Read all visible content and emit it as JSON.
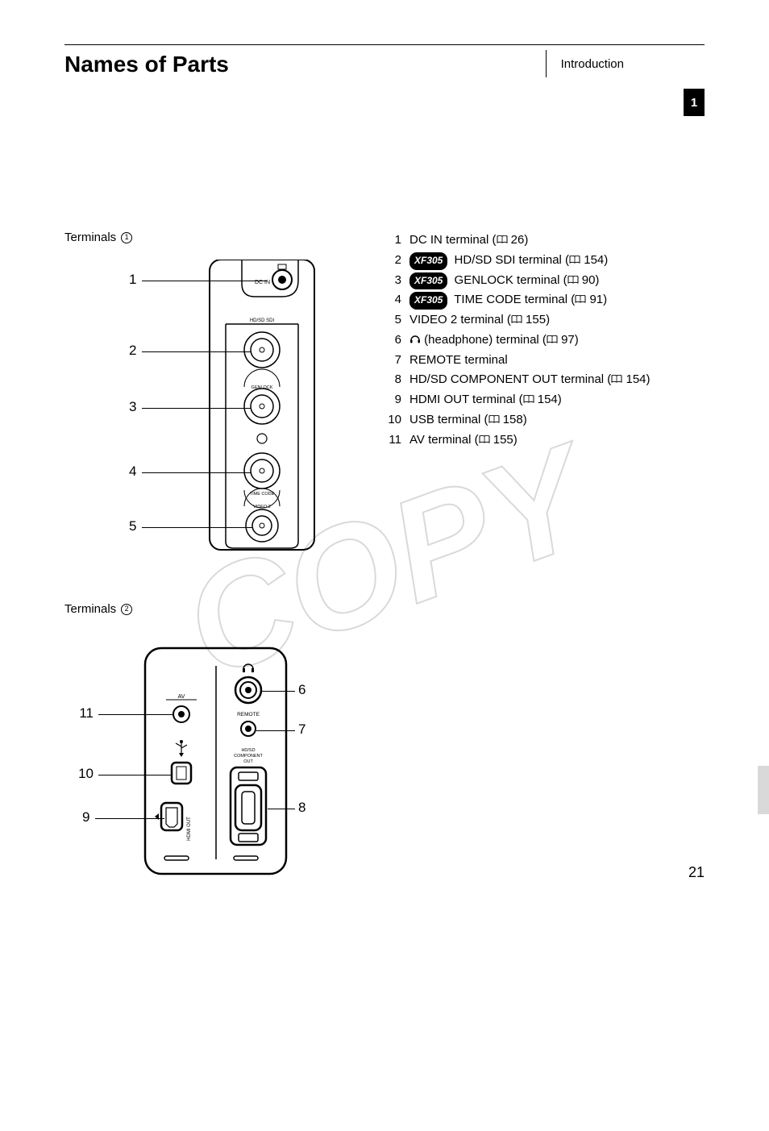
{
  "header": {
    "title": "Names of Parts",
    "section": "Introduction",
    "chapter": "1"
  },
  "watermark_text": "COPY",
  "section1": {
    "label": "Terminals",
    "number": "1"
  },
  "section2": {
    "label": "Terminals",
    "number": "2"
  },
  "diagram1": {
    "callouts": [
      "1",
      "2",
      "3",
      "4",
      "5"
    ],
    "labels": {
      "dcin": "DC IN",
      "sdi": "HD/SD SDI",
      "genlock": "GENLOCK",
      "timecode": "TIME CODE",
      "video2": "VIDEO 2"
    }
  },
  "diagram2": {
    "left": [
      "11",
      "10",
      "9"
    ],
    "right": [
      "6",
      "7",
      "8"
    ],
    "labels": {
      "av": "AV",
      "remote": "REMOTE",
      "comp": "HD/SD\nCOMPONENT\nOUT",
      "hdmi": "HDMI OUT"
    }
  },
  "terminals": [
    {
      "num": "1",
      "model": null,
      "name": "DC IN terminal",
      "page": "26"
    },
    {
      "num": "2",
      "model": "XF305",
      "name": "HD/SD SDI terminal",
      "page": "154"
    },
    {
      "num": "3",
      "model": "XF305",
      "name": "GENLOCK terminal",
      "page": "90"
    },
    {
      "num": "4",
      "model": "XF305",
      "name": "TIME CODE terminal",
      "page": "91"
    },
    {
      "num": "5",
      "model": null,
      "name": "VIDEO 2 terminal",
      "page": "155"
    },
    {
      "num": "6",
      "model": null,
      "icon": "headphone",
      "name": "(headphone) terminal",
      "page": "97"
    },
    {
      "num": "7",
      "model": null,
      "name": "REMOTE terminal",
      "page": null
    },
    {
      "num": "8",
      "model": null,
      "name": "HD/SD COMPONENT OUT terminal",
      "page": "154"
    },
    {
      "num": "9",
      "model": null,
      "name": "HDMI OUT terminal",
      "page": "154"
    },
    {
      "num": "10",
      "model": null,
      "name": "USB terminal",
      "page": "158"
    },
    {
      "num": "11",
      "model": null,
      "name": "AV terminal",
      "page": "155"
    }
  ],
  "page_number": "21",
  "colors": {
    "text": "#000000",
    "bg": "#ffffff",
    "watermark": "#d9d9d9",
    "tab": "#d9d9d9",
    "badge_bg": "#000000",
    "badge_fg": "#ffffff"
  }
}
